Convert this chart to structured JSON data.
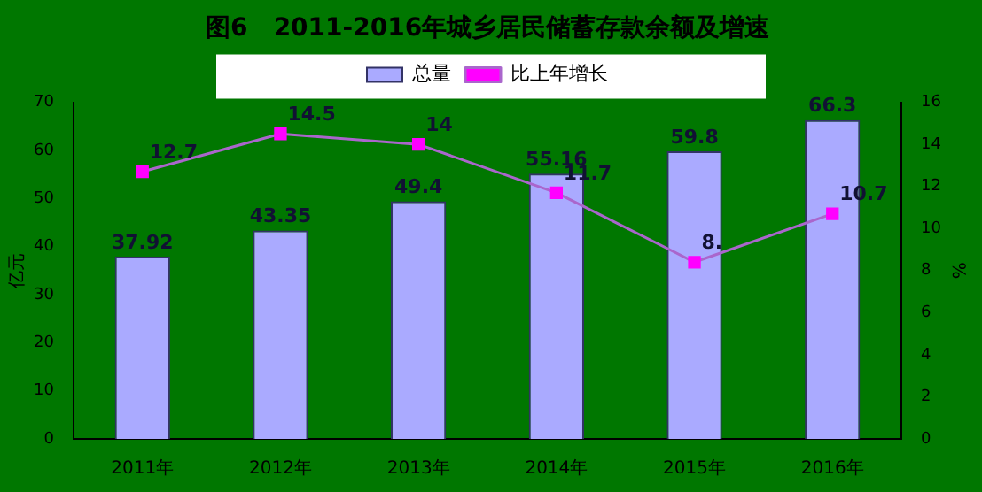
{
  "chart_data": {
    "type": "bar",
    "title": "图6   2011-2016年城乡居民储蓄存款余额及增速",
    "ylabel": "亿元",
    "y2label": "%",
    "categories": [
      "2011年",
      "2012年",
      "2013年",
      "2014年",
      "2015年",
      "2016年"
    ],
    "series": [
      {
        "name": "总量",
        "type": "bar",
        "color": "#aaaaff",
        "values": [
          37.92,
          43.35,
          49.4,
          55.16,
          59.8,
          66.3
        ],
        "data_labels": true
      },
      {
        "name": "比上年增长",
        "type": "line",
        "axis": "y2",
        "color": "#ff00ff",
        "marker": "square",
        "values": [
          12.7,
          14.5,
          14,
          11.7,
          8.4,
          10.7
        ],
        "value_labels": [
          "12.7",
          "14.5",
          "14",
          "11.7",
          "8.",
          "10.7"
        ]
      }
    ],
    "ylim": [
      0,
      70
    ],
    "yticks": [
      0,
      10,
      20,
      30,
      40,
      50,
      60,
      70
    ],
    "y2lim": [
      0,
      16
    ],
    "y2ticks": [
      0,
      2,
      4,
      6,
      8,
      10,
      12,
      14,
      16
    ],
    "grid": false,
    "legend": "top"
  }
}
